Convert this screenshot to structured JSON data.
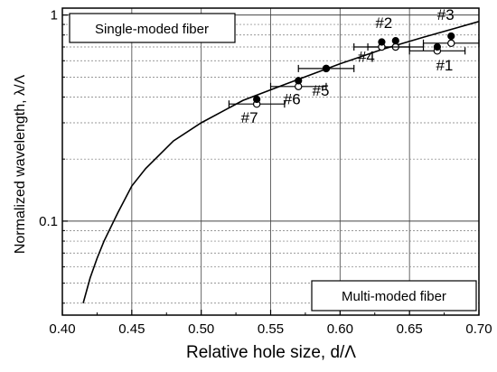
{
  "chart_data": {
    "type": "scatter",
    "xlabel": "Relative hole size, d/Λ",
    "ylabel": "Normalized wavelength, λ/Λ",
    "xlim": [
      0.4,
      0.7
    ],
    "ylim": [
      0.035,
      1.08
    ],
    "yscale": "log",
    "grid": true,
    "x_ticks": [
      0.4,
      0.45,
      0.5,
      0.55,
      0.6,
      0.65,
      0.7
    ],
    "x_tick_labels": [
      "0.40",
      "0.45",
      "0.50",
      "0.55",
      "0.60",
      "0.65",
      "0.70"
    ],
    "y_tick_labels": [
      {
        "value": 0.1,
        "label": "0.1"
      },
      {
        "value": 1,
        "label": "1"
      }
    ],
    "annotations": {
      "upper_left": "Single-moded fiber",
      "lower_right": "Multi-moded fiber"
    },
    "boundary_curve": {
      "x": [
        0.415,
        0.42,
        0.425,
        0.43,
        0.44,
        0.45,
        0.46,
        0.48,
        0.5,
        0.53,
        0.56,
        0.6,
        0.63,
        0.66,
        0.7
      ],
      "y": [
        0.04,
        0.053,
        0.066,
        0.08,
        0.11,
        0.148,
        0.18,
        0.245,
        0.3,
        0.385,
        0.46,
        0.58,
        0.68,
        0.78,
        0.93
      ]
    },
    "points": [
      {
        "label": "#1",
        "x": 0.67,
        "y_filled": 0.7,
        "y_open": 0.67,
        "xerr_low": 0.65,
        "xerr_high": 0.69
      },
      {
        "label": "#2",
        "x": 0.64,
        "y_filled": 0.75,
        "y_open": 0.7,
        "xerr_low": 0.62,
        "xerr_high": 0.66
      },
      {
        "label": "#3",
        "x": 0.68,
        "y_filled": 0.79,
        "y_open": 0.73,
        "xerr_low": 0.66,
        "xerr_high": 0.7
      },
      {
        "label": "#4",
        "x": 0.63,
        "y_filled": 0.74,
        "y_open": 0.7,
        "xerr_low": 0.61,
        "xerr_high": 0.65
      },
      {
        "label": "#5",
        "x": 0.59,
        "y_filled": 0.55,
        "y_open": 0.55,
        "xerr_low": 0.57,
        "xerr_high": 0.61
      },
      {
        "label": "#6",
        "x": 0.57,
        "y_filled": 0.48,
        "y_open": 0.45,
        "xerr_low": 0.55,
        "xerr_high": 0.59
      },
      {
        "label": "#7",
        "x": 0.54,
        "y_filled": 0.39,
        "y_open": 0.37,
        "xerr_low": 0.52,
        "xerr_high": 0.56
      }
    ]
  }
}
